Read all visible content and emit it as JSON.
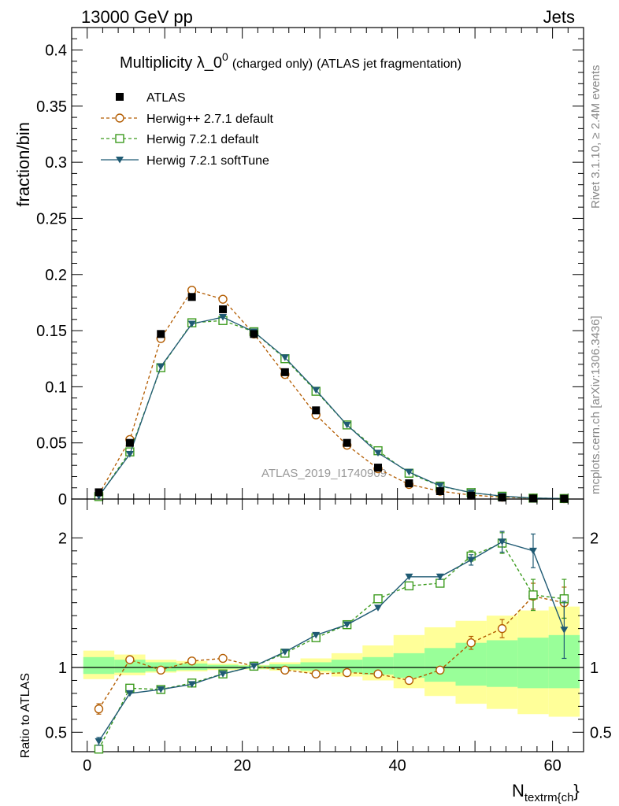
{
  "header": {
    "left": "13000 GeV pp",
    "right": "Jets"
  },
  "plot_title": {
    "main": "Multiplicity λ_0",
    "sup": "0",
    "small": "(charged only)",
    "tail": "(ATLAS jet fragmentation)"
  },
  "side_text": {
    "rivet": "Rivet 3.1.10, ≥ 2.4M events",
    "mcplots": "mcplots.cern.ch [arXiv:1306.3436]"
  },
  "watermark": "ATLAS_2019_I1740909",
  "colors": {
    "atlas": "#000000",
    "herwigpp": "#b35c00",
    "herwig721": "#3c9b1e",
    "softtune": "#1f5a73",
    "band_outer": "#ffff99",
    "band_inner": "#99ff99"
  },
  "chart_data": [
    {
      "type": "scatter",
      "panel": "main",
      "ylabel": "fraction/bin",
      "xlim": [
        -2,
        64
      ],
      "ylim": [
        0,
        0.42
      ],
      "yticks": [
        0,
        0.05,
        0.1,
        0.15,
        0.2,
        0.25,
        0.3,
        0.35,
        0.4
      ],
      "ytick_labels": [
        "0",
        "0.05",
        "0.1",
        "0.15",
        "0.2",
        "0.25",
        "0.3",
        "0.35",
        "0.4"
      ],
      "x": [
        1.5,
        5.5,
        9.5,
        13.5,
        17.5,
        21.5,
        25.5,
        29.5,
        33.5,
        37.5,
        41.5,
        45.5,
        49.5,
        53.5,
        57.5,
        61.5
      ],
      "legend_position": "top-left",
      "series": [
        {
          "name": "ATLAS",
          "key": "atlas",
          "marker": "square-filled",
          "values": [
            0.006,
            0.05,
            0.147,
            0.18,
            0.169,
            0.147,
            0.113,
            0.079,
            0.05,
            0.028,
            0.014,
            0.007,
            0.003,
            0.0013,
            0.0005,
            0.0003
          ]
        },
        {
          "name": "Herwig++ 2.7.1 default",
          "key": "herwigpp",
          "marker": "circle-open",
          "dash": "4,3",
          "values": [
            0.004,
            0.053,
            0.143,
            0.186,
            0.178,
            0.147,
            0.111,
            0.075,
            0.048,
            0.027,
            0.013,
            0.007,
            0.0035,
            0.0017,
            0.0008,
            0.0004
          ]
        },
        {
          "name": "Herwig 7.2.1 default",
          "key": "herwig721",
          "marker": "square-open",
          "dash": "4,3",
          "values": [
            0.0022,
            0.042,
            0.117,
            0.157,
            0.159,
            0.149,
            0.125,
            0.096,
            0.066,
            0.043,
            0.023,
            0.0115,
            0.0057,
            0.0025,
            0.0008,
            0.00045
          ]
        },
        {
          "name": "Herwig 7.2.1 softTune",
          "key": "softtune",
          "marker": "triangle-down-filled",
          "dash": "",
          "values": [
            0.0026,
            0.04,
            0.118,
            0.156,
            0.162,
            0.149,
            0.126,
            0.097,
            0.066,
            0.041,
            0.024,
            0.0118,
            0.0057,
            0.0026,
            0.0009,
            0.0004
          ]
        }
      ]
    },
    {
      "type": "line",
      "panel": "ratio",
      "ylabel": "Ratio to ATLAS",
      "xlabel": "N",
      "xlabel_sub": "textrm{ch",
      "xlabel_tail": "}",
      "xlim": [
        -2,
        64
      ],
      "ylim": [
        0.35,
        2.3
      ],
      "yticks": [
        0.5,
        1,
        2
      ],
      "ytick_labels": [
        "0.5",
        "1",
        "2"
      ],
      "xticks": [
        0,
        20,
        40,
        60
      ],
      "xtick_labels": [
        "0",
        "20",
        "40",
        "60"
      ],
      "x": [
        1.5,
        5.5,
        9.5,
        13.5,
        17.5,
        21.5,
        25.5,
        29.5,
        33.5,
        37.5,
        41.5,
        45.5,
        49.5,
        53.5,
        57.5,
        61.5
      ],
      "bins_lo": [
        -0.5,
        3.5,
        7.5,
        11.5,
        15.5,
        19.5,
        23.5,
        27.5,
        31.5,
        35.5,
        39.5,
        43.5,
        47.5,
        51.5,
        55.5,
        59.5
      ],
      "bins_hi": [
        3.5,
        7.5,
        11.5,
        15.5,
        19.5,
        23.5,
        27.5,
        31.5,
        35.5,
        39.5,
        43.5,
        47.5,
        51.5,
        55.5,
        59.5,
        63.5
      ],
      "band_outer": [
        [
          0.91,
          1.13
        ],
        [
          0.94,
          1.1
        ],
        [
          0.96,
          1.06
        ],
        [
          0.97,
          1.05
        ],
        [
          0.98,
          1.03
        ],
        [
          0.985,
          1.02
        ],
        [
          0.975,
          1.04
        ],
        [
          0.96,
          1.07
        ],
        [
          0.93,
          1.11
        ],
        [
          0.9,
          1.17
        ],
        [
          0.84,
          1.25
        ],
        [
          0.78,
          1.31
        ],
        [
          0.72,
          1.36
        ],
        [
          0.68,
          1.4
        ],
        [
          0.64,
          1.44
        ],
        [
          0.62,
          1.47
        ]
      ],
      "band_inner": [
        [
          0.95,
          1.08
        ],
        [
          0.96,
          1.06
        ],
        [
          0.97,
          1.04
        ],
        [
          0.98,
          1.03
        ],
        [
          0.99,
          1.02
        ],
        [
          0.99,
          1.015
        ],
        [
          0.985,
          1.025
        ],
        [
          0.975,
          1.04
        ],
        [
          0.96,
          1.06
        ],
        [
          0.945,
          1.08
        ],
        [
          0.92,
          1.11
        ],
        [
          0.89,
          1.15
        ],
        [
          0.86,
          1.19
        ],
        [
          0.85,
          1.21
        ],
        [
          0.84,
          1.23
        ],
        [
          0.84,
          1.25
        ]
      ],
      "series": [
        {
          "name": "Herwig++ 2.7.1 default",
          "key": "herwigpp",
          "marker": "circle-open",
          "dash": "4,3",
          "values": [
            0.68,
            1.06,
            0.98,
            1.05,
            1.07,
            1.01,
            0.98,
            0.95,
            0.96,
            0.95,
            0.9,
            0.98,
            1.19,
            1.3,
            1.55,
            1.5
          ],
          "errors": [
            0.04,
            0.01,
            0.005,
            0.005,
            0.005,
            0.005,
            0.005,
            0.006,
            0.008,
            0.01,
            0.012,
            0.02,
            0.05,
            0.07,
            0.1,
            0.12
          ]
        },
        {
          "name": "Herwig 7.2.1 default",
          "key": "herwig721",
          "marker": "square-open",
          "dash": "4,3",
          "values": [
            0.37,
            0.84,
            0.83,
            0.88,
            0.95,
            1.01,
            1.11,
            1.23,
            1.33,
            1.53,
            1.63,
            1.65,
            1.86,
            1.96,
            1.56,
            1.53
          ],
          "errors": [
            0.02,
            0.01,
            0.005,
            0.005,
            0.005,
            0.005,
            0.005,
            0.008,
            0.01,
            0.012,
            0.015,
            0.02,
            0.04,
            0.08,
            0.12,
            0.15
          ]
        },
        {
          "name": "Herwig 7.2.1 softTune",
          "key": "softtune",
          "marker": "triangle-down-filled",
          "dash": "",
          "values": [
            0.43,
            0.8,
            0.83,
            0.87,
            0.95,
            1.01,
            1.12,
            1.25,
            1.33,
            1.46,
            1.7,
            1.7,
            1.83,
            1.97,
            1.9,
            1.29
          ],
          "errors": [
            0.03,
            0.01,
            0.005,
            0.005,
            0.005,
            0.005,
            0.005,
            0.008,
            0.01,
            0.012,
            0.015,
            0.02,
            0.04,
            0.08,
            0.13,
            0.22
          ]
        }
      ]
    }
  ]
}
